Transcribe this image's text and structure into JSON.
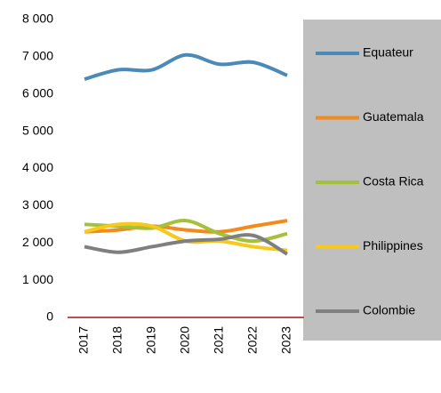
{
  "chart_data": {
    "type": "line",
    "categories": [
      "2017",
      "2018",
      "2019",
      "2020",
      "2021",
      "2022",
      "2023"
    ],
    "series": [
      {
        "name": "Equateur",
        "color": "#4a8ab8",
        "values": [
          6400,
          6650,
          6650,
          7050,
          6800,
          6850,
          6500
        ]
      },
      {
        "name": "Guatemala",
        "color": "#f28a1c",
        "values": [
          2300,
          2350,
          2450,
          2350,
          2300,
          2450,
          2600
        ]
      },
      {
        "name": "Costa Rica",
        "color": "#a5c03a",
        "values": [
          2500,
          2450,
          2400,
          2600,
          2250,
          2050,
          2250
        ]
      },
      {
        "name": "Philippines",
        "color": "#f7c919",
        "values": [
          2300,
          2500,
          2450,
          2050,
          2050,
          1900,
          1800
        ]
      },
      {
        "name": "Colombie",
        "color": "#7f7f7f",
        "values": [
          1900,
          1750,
          1900,
          2050,
          2100,
          2200,
          1700
        ]
      }
    ],
    "ylim": [
      0,
      8000
    ],
    "yticks": [
      {
        "value": 0,
        "label": "0"
      },
      {
        "value": 1000,
        "label": "1 000"
      },
      {
        "value": 2000,
        "label": "2 000"
      },
      {
        "value": 3000,
        "label": "3 000"
      },
      {
        "value": 4000,
        "label": "4 000"
      },
      {
        "value": 5000,
        "label": "5 000"
      },
      {
        "value": 6000,
        "label": "6 000"
      },
      {
        "value": 7000,
        "label": "7 000"
      },
      {
        "value": 8000,
        "label": "8 000"
      }
    ],
    "axis_color": "#c0504d",
    "legend": "right"
  }
}
